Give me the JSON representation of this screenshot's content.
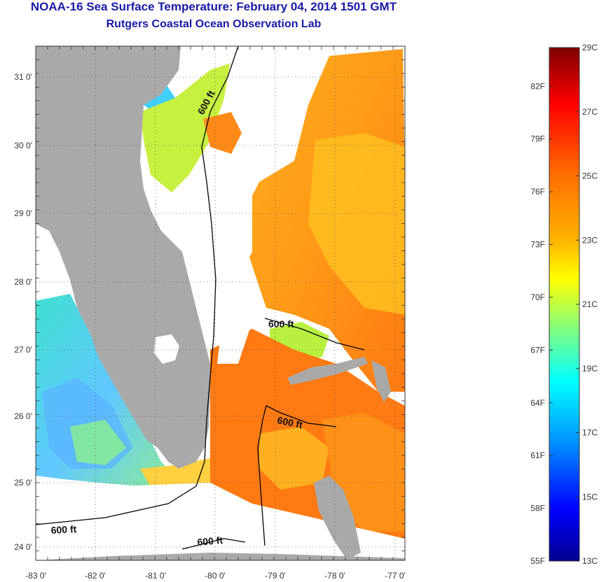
{
  "header": {
    "title": "NOAA-16 Sea Surface Temperature:  February 04, 2014 1501 GMT",
    "subtitle": "Rutgers Coastal Ocean Observation Lab"
  },
  "map": {
    "lat_labels": [
      "31 0'",
      "30 0'",
      "29 0'",
      "28 0'",
      "27 0'",
      "26 0'",
      "25 0'",
      "24 0'"
    ],
    "lon_labels": [
      "-83 0'",
      "-82 0'",
      "-81 0'",
      "-80 0'",
      "-79 0'",
      "-78 0'",
      "-77 0'"
    ],
    "contour_labels": [
      "600 ft",
      "600 ft",
      "600 ft",
      "600 ft",
      "600 ft"
    ],
    "colors": {
      "land": "#a9a9a9",
      "cloud": "#ffffff",
      "contour": "#000000"
    }
  },
  "colorbar": {
    "fahrenheit_labels": [
      "82F",
      "79F",
      "76F",
      "73F",
      "70F",
      "67F",
      "64F",
      "61F",
      "58F",
      "55F"
    ],
    "celsius_labels": [
      "29C",
      "27C",
      "25C",
      "23C",
      "21C",
      "19C",
      "17C",
      "15C",
      "13C"
    ],
    "colormap": [
      "#7f0000",
      "#ff0000",
      "#ff8000",
      "#ffd000",
      "#ffff00",
      "#80ff80",
      "#00ffff",
      "#0080ff",
      "#0000ff",
      "#00008f"
    ]
  }
}
